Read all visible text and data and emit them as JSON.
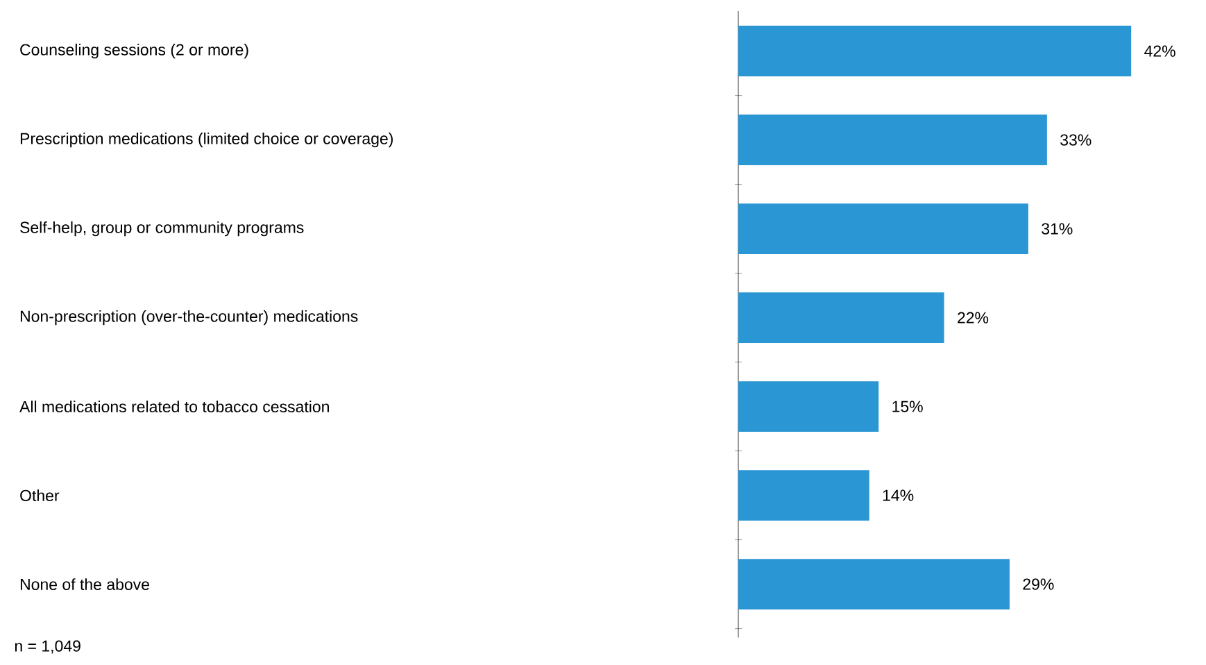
{
  "chart_data": {
    "type": "bar",
    "orientation": "horizontal",
    "categories": [
      "Counseling sessions (2 or more)",
      "Prescription medications (limited choice or coverage)",
      "Self-help, group or community programs",
      "Non-prescription (over-the-counter) medications",
      "All medications related to tobacco cessation",
      "Other",
      "None of the above"
    ],
    "values": [
      42,
      33,
      31,
      22,
      15,
      14,
      29
    ],
    "value_labels": [
      "42%",
      "33%",
      "31%",
      "22%",
      "15%",
      "14%",
      "29%"
    ],
    "color": "#2a96d4",
    "tick_labels": "y",
    "annotations": [
      "n = 1,049"
    ]
  }
}
